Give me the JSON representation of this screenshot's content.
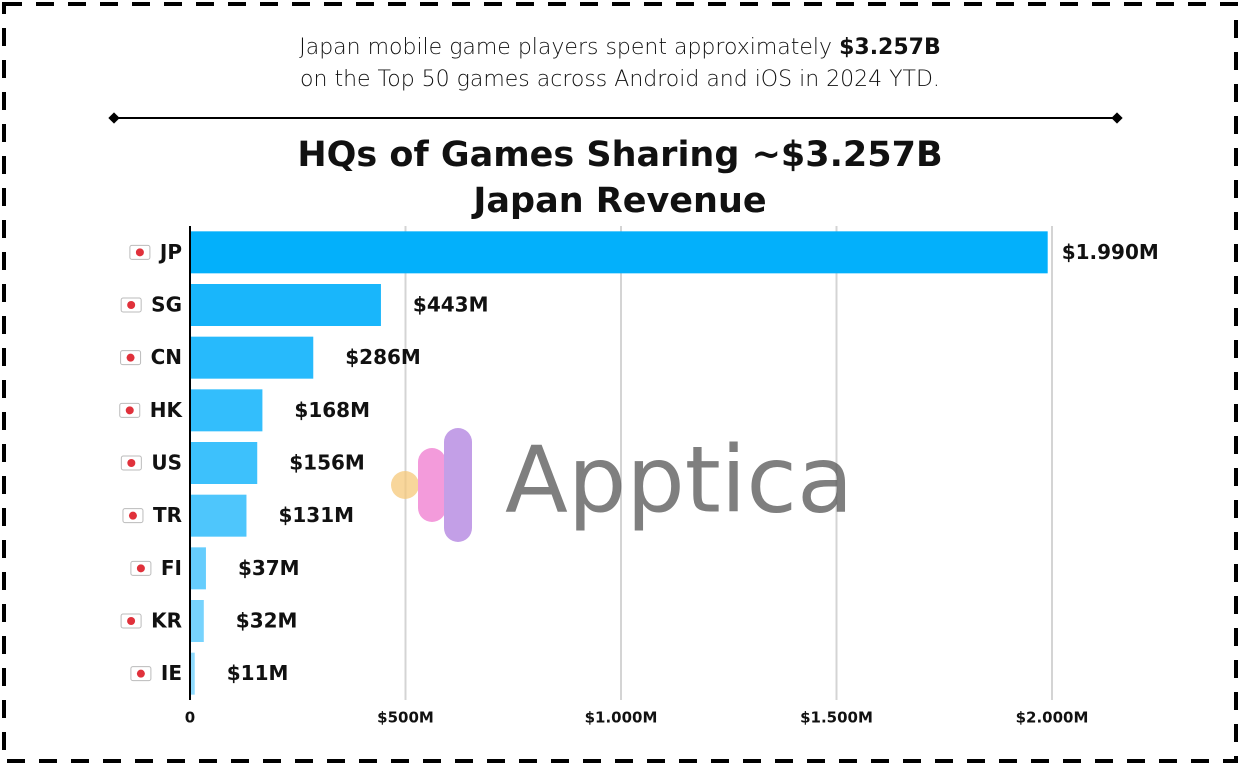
{
  "header": {
    "text": "Japan mobile game players spent approximately",
    "highlight": "$3.257B",
    "text_line2": "on the Top 50 games across Android and iOS in 2024 YTD."
  },
  "watermark": "Apptica",
  "chart_data": {
    "type": "bar",
    "orientation": "horizontal",
    "title": [
      "HQs of Games Sharing ~$3.257B",
      "Japan Revenue"
    ],
    "categories": [
      "JP",
      "SG",
      "CN",
      "HK",
      "US",
      "TR",
      "FI",
      "KR",
      "IE"
    ],
    "values": [
      1990,
      443,
      286,
      168,
      156,
      131,
      37,
      32,
      11
    ],
    "value_labels": [
      "$1.990M",
      "$443M",
      "$286M",
      "$168M",
      "$156M",
      "$131M",
      "$37M",
      "$32M",
      "$11M"
    ],
    "colors": [
      "#03b0fb",
      "#19b6fb",
      "#27bafc",
      "#33befc",
      "#3dc1fc",
      "#4ec6fc",
      "#66cdfd",
      "#77d3fd",
      "#8fdafd"
    ],
    "xlim": [
      0,
      2000
    ],
    "xticks": [
      0,
      {
        "value": 500,
        "label": "$500M"
      },
      {
        "value": 1000,
        "label": "$1.000M"
      },
      {
        "value": 1500,
        "label": "$1.500M"
      },
      {
        "value": 2000,
        "label": "$2.000M"
      }
    ],
    "grid": true
  }
}
